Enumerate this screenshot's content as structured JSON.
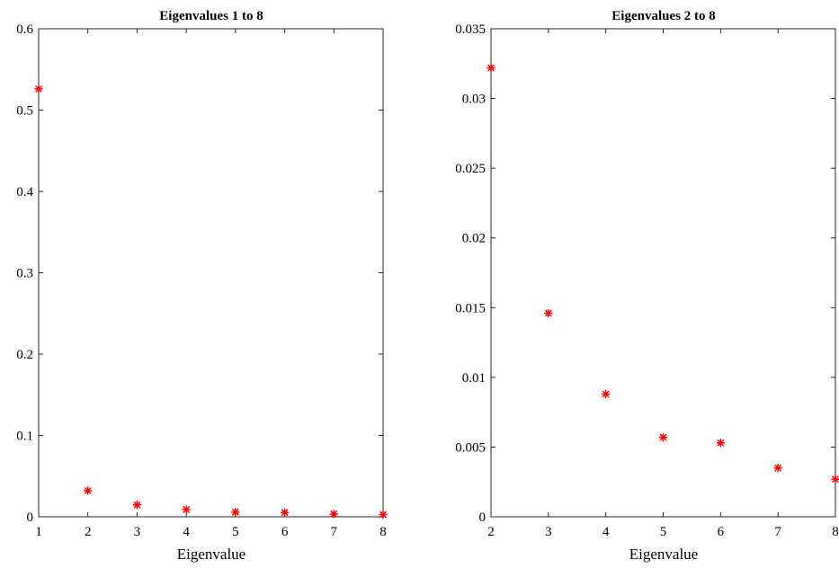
{
  "chart_data": [
    {
      "type": "scatter",
      "title": "Eigenvalues 1 to 8",
      "xlabel": "Eigenvalue",
      "ylabel": "",
      "xlim": [
        1,
        8
      ],
      "ylim": [
        0,
        0.6
      ],
      "xticks": [
        1,
        2,
        3,
        4,
        5,
        6,
        7,
        8
      ],
      "xtick_labels": [
        "1",
        "2",
        "3",
        "4",
        "5",
        "6",
        "7",
        "8"
      ],
      "yticks": [
        0,
        0.1,
        0.2,
        0.3,
        0.4,
        0.5,
        0.6
      ],
      "ytick_labels": [
        "0",
        "0.1",
        "0.2",
        "0.3",
        "0.4",
        "0.5",
        "0.6"
      ],
      "grid": false,
      "marker": "asterisk",
      "marker_color": "#ff0000",
      "x": [
        1,
        2,
        3,
        4,
        5,
        6,
        7,
        8
      ],
      "y": [
        0.526,
        0.0322,
        0.0146,
        0.0088,
        0.0057,
        0.0053,
        0.0035,
        0.0027
      ]
    },
    {
      "type": "scatter",
      "title": "Eigenvalues 2 to 8",
      "xlabel": "Eigenvalue",
      "ylabel": "",
      "xlim": [
        2,
        8
      ],
      "ylim": [
        0,
        0.035
      ],
      "xticks": [
        2,
        3,
        4,
        5,
        6,
        7,
        8
      ],
      "xtick_labels": [
        "2",
        "3",
        "4",
        "5",
        "6",
        "7",
        "8"
      ],
      "yticks": [
        0,
        0.005,
        0.01,
        0.015,
        0.02,
        0.025,
        0.03,
        0.035
      ],
      "ytick_labels": [
        "0",
        "0.005",
        "0.01",
        "0.015",
        "0.02",
        "0.025",
        "0.03",
        "0.035"
      ],
      "grid": false,
      "marker": "asterisk",
      "marker_color": "#ff0000",
      "x": [
        2,
        3,
        4,
        5,
        6,
        7,
        8
      ],
      "y": [
        0.0322,
        0.0146,
        0.0088,
        0.0057,
        0.0053,
        0.0035,
        0.0027
      ]
    }
  ]
}
